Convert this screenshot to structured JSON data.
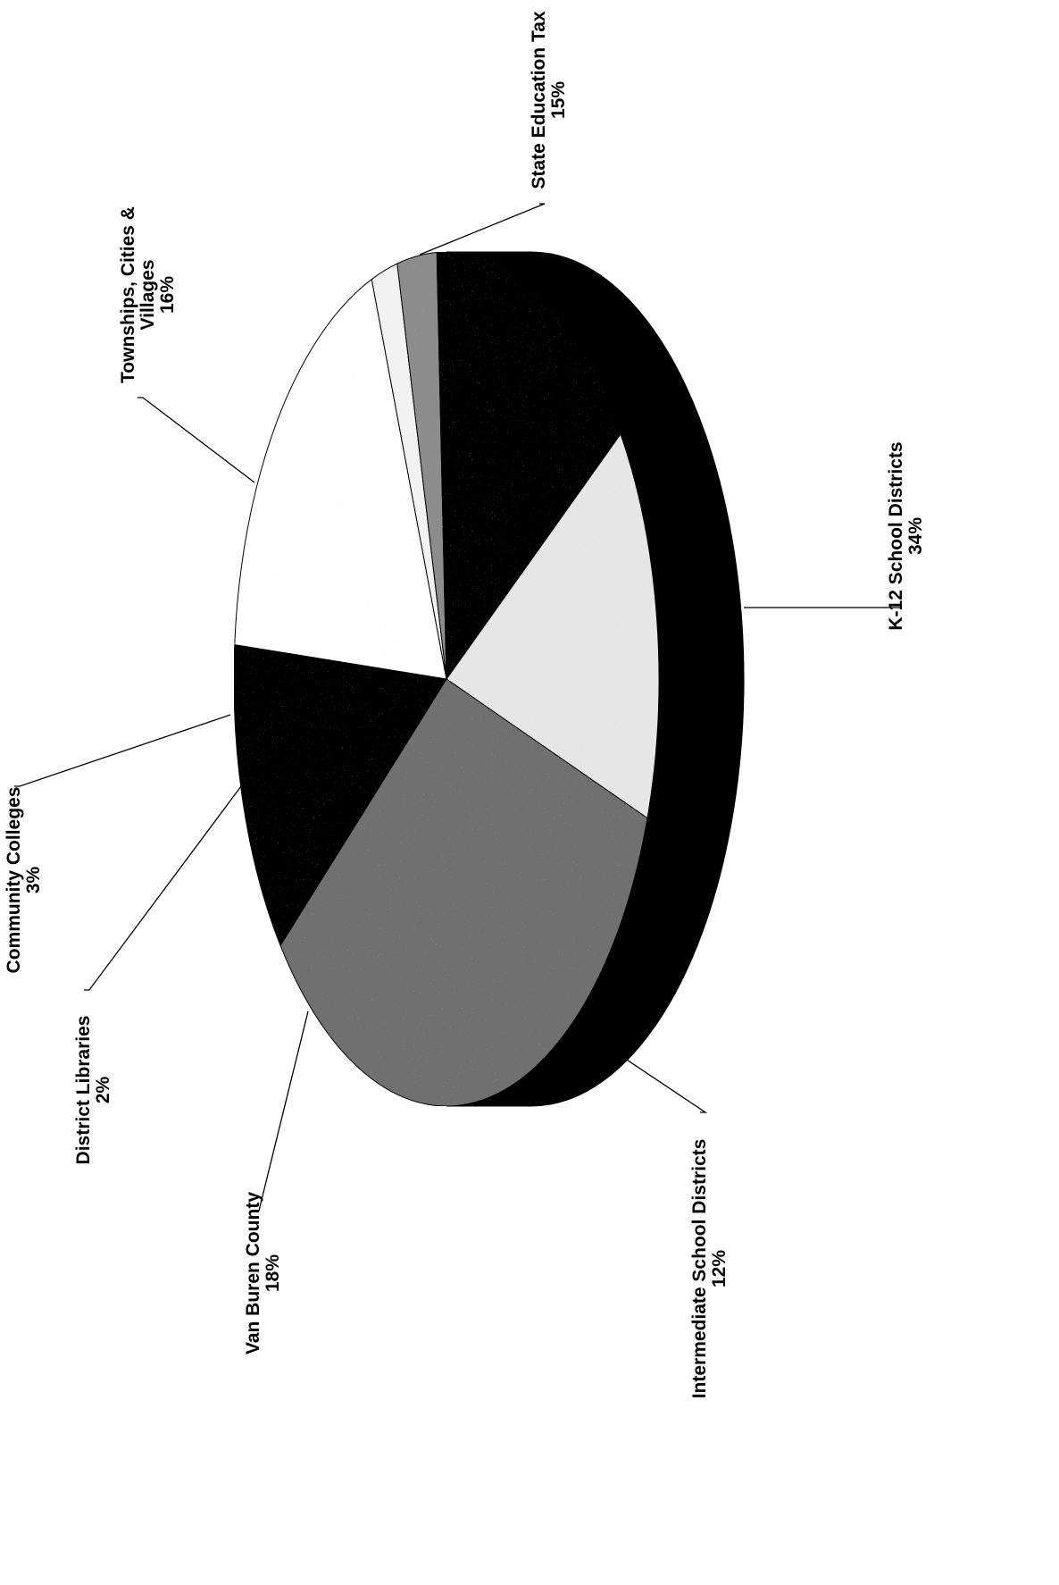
{
  "chart_data": {
    "type": "pie",
    "style": "3d",
    "orientation": "rotated-90-counterclockwise",
    "unit": "%",
    "series": [
      {
        "slices": [
          {
            "label": "State Education Tax",
            "value": 15,
            "value_label": "15%",
            "color": "#e6e6e6"
          },
          {
            "label": "K-12 School Districts",
            "value": 34,
            "value_label": "34%",
            "color": "#707070"
          },
          {
            "label": "Intermediate School Districts",
            "value": 12,
            "value_label": "12%",
            "color": "#050505"
          },
          {
            "label": "Van Buren County",
            "value": 18,
            "value_label": "18%",
            "color": "#ffffff"
          },
          {
            "label": "District Libraries",
            "value": 2,
            "value_label": "2%",
            "color": "#f2f2f2"
          },
          {
            "label": "Community Colleges",
            "value": 3,
            "value_label": "3%",
            "color": "#8c8c8c"
          },
          {
            "label": "Townships, Cities & Villages",
            "value": 16,
            "value_label": "16%",
            "color": "#050505"
          }
        ]
      }
    ]
  }
}
